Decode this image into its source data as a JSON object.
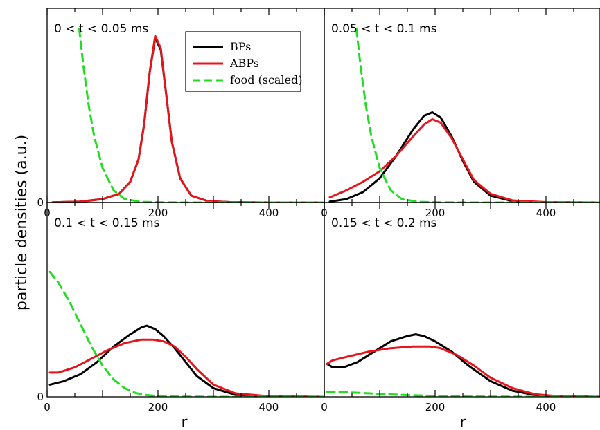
{
  "ylabel": "particle densities (a.u.)",
  "xlabel": "r",
  "legend": [
    {
      "label": "BPs",
      "color": "#000000",
      "dash": "solid"
    },
    {
      "label": "ABPs",
      "color": "#e8141b",
      "dash": "solid"
    },
    {
      "label": "food (scaled)",
      "color": "#22dd22",
      "dash": "dashed"
    }
  ],
  "chart_data": [
    {
      "type": "line",
      "title": "0 < t < 0.05 ms",
      "x_ticks": [
        "0",
        "200",
        "400"
      ],
      "y_ticks": [
        "0"
      ],
      "xlim": [
        0,
        500
      ],
      "ylim": [
        0,
        1.0
      ],
      "series": [
        {
          "name": "BPs",
          "color": "#000000",
          "x": [
            10,
            60,
            100,
            130,
            150,
            165,
            175,
            185,
            195,
            205,
            215,
            225,
            240,
            260,
            290,
            330,
            400,
            500
          ],
          "y": [
            0.001,
            0.005,
            0.02,
            0.05,
            0.12,
            0.25,
            0.45,
            0.75,
            0.95,
            0.88,
            0.62,
            0.35,
            0.14,
            0.04,
            0.008,
            0.002,
            0,
            0
          ]
        },
        {
          "name": "ABPs",
          "color": "#e8141b",
          "x": [
            10,
            60,
            100,
            130,
            150,
            165,
            175,
            185,
            195,
            205,
            215,
            225,
            240,
            260,
            290,
            330,
            400,
            500
          ],
          "y": [
            0.001,
            0.005,
            0.02,
            0.05,
            0.12,
            0.25,
            0.45,
            0.75,
            0.96,
            0.89,
            0.62,
            0.35,
            0.14,
            0.04,
            0.008,
            0.002,
            0,
            0
          ]
        },
        {
          "name": "food (scaled)",
          "color": "#22dd22",
          "x": [
            58,
            65,
            75,
            85,
            100,
            120,
            140,
            170,
            200,
            250,
            320,
            500
          ],
          "y": [
            1.0,
            0.8,
            0.56,
            0.38,
            0.2,
            0.07,
            0.02,
            0.004,
            0.001,
            0,
            0,
            0
          ]
        }
      ]
    },
    {
      "type": "line",
      "title": "0.05 < t < 0.1 ms",
      "x_ticks": [
        "0",
        "200",
        "400"
      ],
      "y_ticks": [],
      "xlim": [
        0,
        500
      ],
      "ylim": [
        0,
        1.0
      ],
      "series": [
        {
          "name": "BPs",
          "color": "#000000",
          "x": [
            10,
            40,
            70,
            100,
            130,
            160,
            180,
            195,
            210,
            230,
            250,
            270,
            300,
            340,
            400,
            500
          ],
          "y": [
            0.005,
            0.02,
            0.06,
            0.14,
            0.27,
            0.42,
            0.5,
            0.52,
            0.49,
            0.38,
            0.24,
            0.12,
            0.04,
            0.008,
            0.001,
            0
          ]
        },
        {
          "name": "ABPs",
          "color": "#e8141b",
          "x": [
            10,
            40,
            70,
            100,
            130,
            160,
            180,
            195,
            210,
            230,
            250,
            270,
            300,
            340,
            400,
            500
          ],
          "y": [
            0.03,
            0.07,
            0.12,
            0.18,
            0.27,
            0.38,
            0.45,
            0.48,
            0.46,
            0.37,
            0.25,
            0.13,
            0.05,
            0.012,
            0.002,
            0
          ]
        },
        {
          "name": "food (scaled)",
          "color": "#22dd22",
          "x": [
            58,
            65,
            75,
            85,
            100,
            120,
            140,
            170,
            200,
            250,
            320,
            500
          ],
          "y": [
            1.0,
            0.8,
            0.56,
            0.38,
            0.2,
            0.07,
            0.02,
            0.004,
            0.001,
            0,
            0,
            0
          ]
        }
      ]
    },
    {
      "type": "line",
      "title": "0.1 < t < 0.15 ms",
      "x_ticks": [
        "0",
        "200",
        "400"
      ],
      "y_ticks": [
        "0"
      ],
      "xlim": [
        0,
        500
      ],
      "ylim": [
        0,
        1.0
      ],
      "series": [
        {
          "name": "BPs",
          "color": "#000000",
          "x": [
            5,
            30,
            60,
            90,
            120,
            150,
            170,
            180,
            195,
            210,
            230,
            250,
            270,
            300,
            340,
            400,
            500
          ],
          "y": [
            0.07,
            0.09,
            0.13,
            0.2,
            0.29,
            0.36,
            0.4,
            0.41,
            0.39,
            0.35,
            0.28,
            0.2,
            0.12,
            0.05,
            0.012,
            0.002,
            0
          ]
        },
        {
          "name": "ABPs",
          "color": "#e8141b",
          "x": [
            5,
            20,
            50,
            80,
            110,
            140,
            170,
            190,
            210,
            230,
            250,
            270,
            300,
            340,
            400,
            500
          ],
          "y": [
            0.14,
            0.14,
            0.17,
            0.22,
            0.27,
            0.31,
            0.33,
            0.33,
            0.32,
            0.29,
            0.23,
            0.16,
            0.07,
            0.02,
            0.003,
            0
          ]
        },
        {
          "name": "food (scaled)",
          "color": "#22dd22",
          "x": [
            5,
            20,
            40,
            60,
            80,
            100,
            120,
            140,
            160,
            180,
            200,
            220,
            250,
            300,
            500
          ],
          "y": [
            0.72,
            0.66,
            0.55,
            0.42,
            0.29,
            0.18,
            0.1,
            0.05,
            0.022,
            0.01,
            0.005,
            0.002,
            0.001,
            0,
            0
          ]
        }
      ]
    },
    {
      "type": "line",
      "title": "0.15 < t < 0.2 ms",
      "x_ticks": [
        "0",
        "200",
        "400"
      ],
      "y_ticks": [],
      "xlim": [
        0,
        500
      ],
      "ylim": [
        0,
        1.0
      ],
      "series": [
        {
          "name": "BPs",
          "color": "#000000",
          "x": [
            5,
            15,
            35,
            60,
            90,
            120,
            150,
            165,
            180,
            200,
            230,
            260,
            300,
            340,
            380,
            420,
            500
          ],
          "y": [
            0.19,
            0.17,
            0.17,
            0.2,
            0.26,
            0.32,
            0.35,
            0.36,
            0.35,
            0.32,
            0.26,
            0.18,
            0.09,
            0.035,
            0.01,
            0.003,
            0
          ]
        },
        {
          "name": "ABPs",
          "color": "#e8141b",
          "x": [
            5,
            15,
            40,
            80,
            120,
            160,
            190,
            210,
            240,
            270,
            300,
            340,
            380,
            420,
            500
          ],
          "y": [
            0.19,
            0.21,
            0.23,
            0.26,
            0.28,
            0.29,
            0.29,
            0.28,
            0.24,
            0.18,
            0.11,
            0.05,
            0.015,
            0.004,
            0
          ]
        },
        {
          "name": "food (scaled)",
          "color": "#22dd22",
          "x": [
            5,
            50,
            100,
            150,
            200,
            250,
            300,
            400,
            500
          ],
          "y": [
            0.03,
            0.025,
            0.017,
            0.01,
            0.005,
            0.002,
            0.001,
            0,
            0
          ]
        }
      ]
    }
  ]
}
